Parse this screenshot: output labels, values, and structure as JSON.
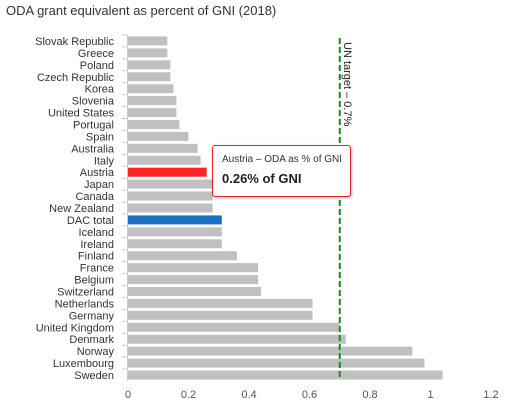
{
  "chart_data": {
    "type": "bar",
    "orientation": "horizontal",
    "title": "ODA grant equivalent as percent of GNI (2018)",
    "xlabel": "",
    "ylabel": "",
    "xlim": [
      0,
      1.2
    ],
    "x_ticks": [
      "0",
      "0.2",
      "0.4",
      "0.6",
      "0.8",
      "1",
      "1.2"
    ],
    "grid": false,
    "legend": "none",
    "categories": [
      "Slovak Republic",
      "Greece",
      "Poland",
      "Czech Republic",
      "Korea",
      "Slovenia",
      "United States",
      "Portugal",
      "Spain",
      "Australia",
      "Italy",
      "Austria",
      "Japan",
      "Canada",
      "New Zealand",
      "DAC total",
      "Iceland",
      "Ireland",
      "Finland",
      "France",
      "Belgium",
      "Switzerland",
      "Netherlands",
      "Germany",
      "United Kingdom",
      "Denmark",
      "Norway",
      "Luxembourg",
      "Sweden"
    ],
    "values": [
      0.13,
      0.13,
      0.14,
      0.14,
      0.15,
      0.16,
      0.16,
      0.17,
      0.2,
      0.23,
      0.24,
      0.26,
      0.28,
      0.28,
      0.28,
      0.31,
      0.31,
      0.31,
      0.36,
      0.43,
      0.43,
      0.44,
      0.61,
      0.61,
      0.7,
      0.72,
      0.94,
      0.98,
      1.04
    ],
    "highlight": {
      "Austria": "#ff2222",
      "DAC total": "#1a6fc4"
    },
    "default_bar_color": "#c0c0c0",
    "reference_line": {
      "value": 0.7,
      "label": "UN target – 0.7%",
      "color": "#1a8a1a"
    },
    "tooltip": {
      "header": "Austria – ODA as % of GNI",
      "value": "0.26% of GNI"
    }
  }
}
